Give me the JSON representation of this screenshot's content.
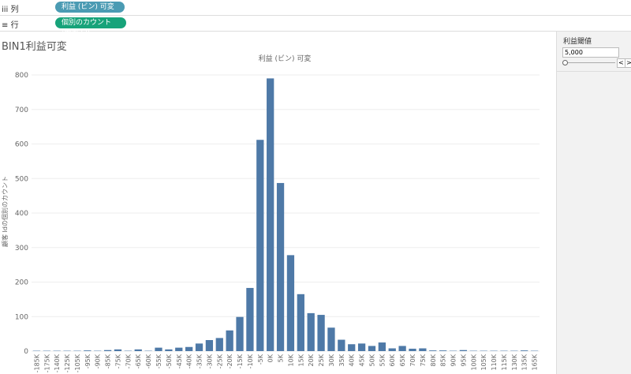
{
  "ui": {
    "columns_label": "列",
    "columns_pill": "利益 (ビン) 可変",
    "rows_label": "行",
    "rows_pill": "個別のカウント(顧客 Id)",
    "sheet_title": "BIN1利益可変",
    "parameter_title": "利益閾値",
    "parameter_value": "5,000"
  },
  "chart_data": {
    "type": "bar",
    "title": "利益 (ビン) 可変",
    "y_label": "顧客 Idの個別のカウント",
    "color": "#4e79a7",
    "grid": true,
    "categories": [
      "-185K",
      "-175K",
      "-140K",
      "-125K",
      "-105K",
      "-95K",
      "-90K",
      "-85K",
      "-75K",
      "-70K",
      "-65K",
      "-60K",
      "-55K",
      "-50K",
      "-45K",
      "-40K",
      "-35K",
      "-30K",
      "-25K",
      "-20K",
      "-15K",
      "-10K",
      "-5K",
      "0K",
      "5K",
      "10K",
      "15K",
      "20K",
      "25K",
      "30K",
      "35K",
      "40K",
      "45K",
      "50K",
      "55K",
      "60K",
      "65K",
      "70K",
      "75K",
      "80K",
      "85K",
      "90K",
      "95K",
      "100K",
      "105K",
      "110K",
      "115K",
      "130K",
      "135K",
      "165K"
    ],
    "values": [
      1,
      1,
      1,
      1,
      1,
      2,
      1,
      3,
      5,
      1,
      5,
      1,
      10,
      5,
      10,
      12,
      22,
      32,
      38,
      60,
      99,
      183,
      612,
      790,
      487,
      278,
      165,
      110,
      105,
      68,
      33,
      20,
      22,
      15,
      25,
      8,
      15,
      7,
      8,
      2,
      2,
      1,
      3,
      1,
      1,
      1,
      1,
      1,
      2,
      1
    ],
    "ylim": [
      0,
      800
    ],
    "yticks": [
      0,
      100,
      200,
      300,
      400,
      500,
      600,
      700,
      800
    ]
  }
}
